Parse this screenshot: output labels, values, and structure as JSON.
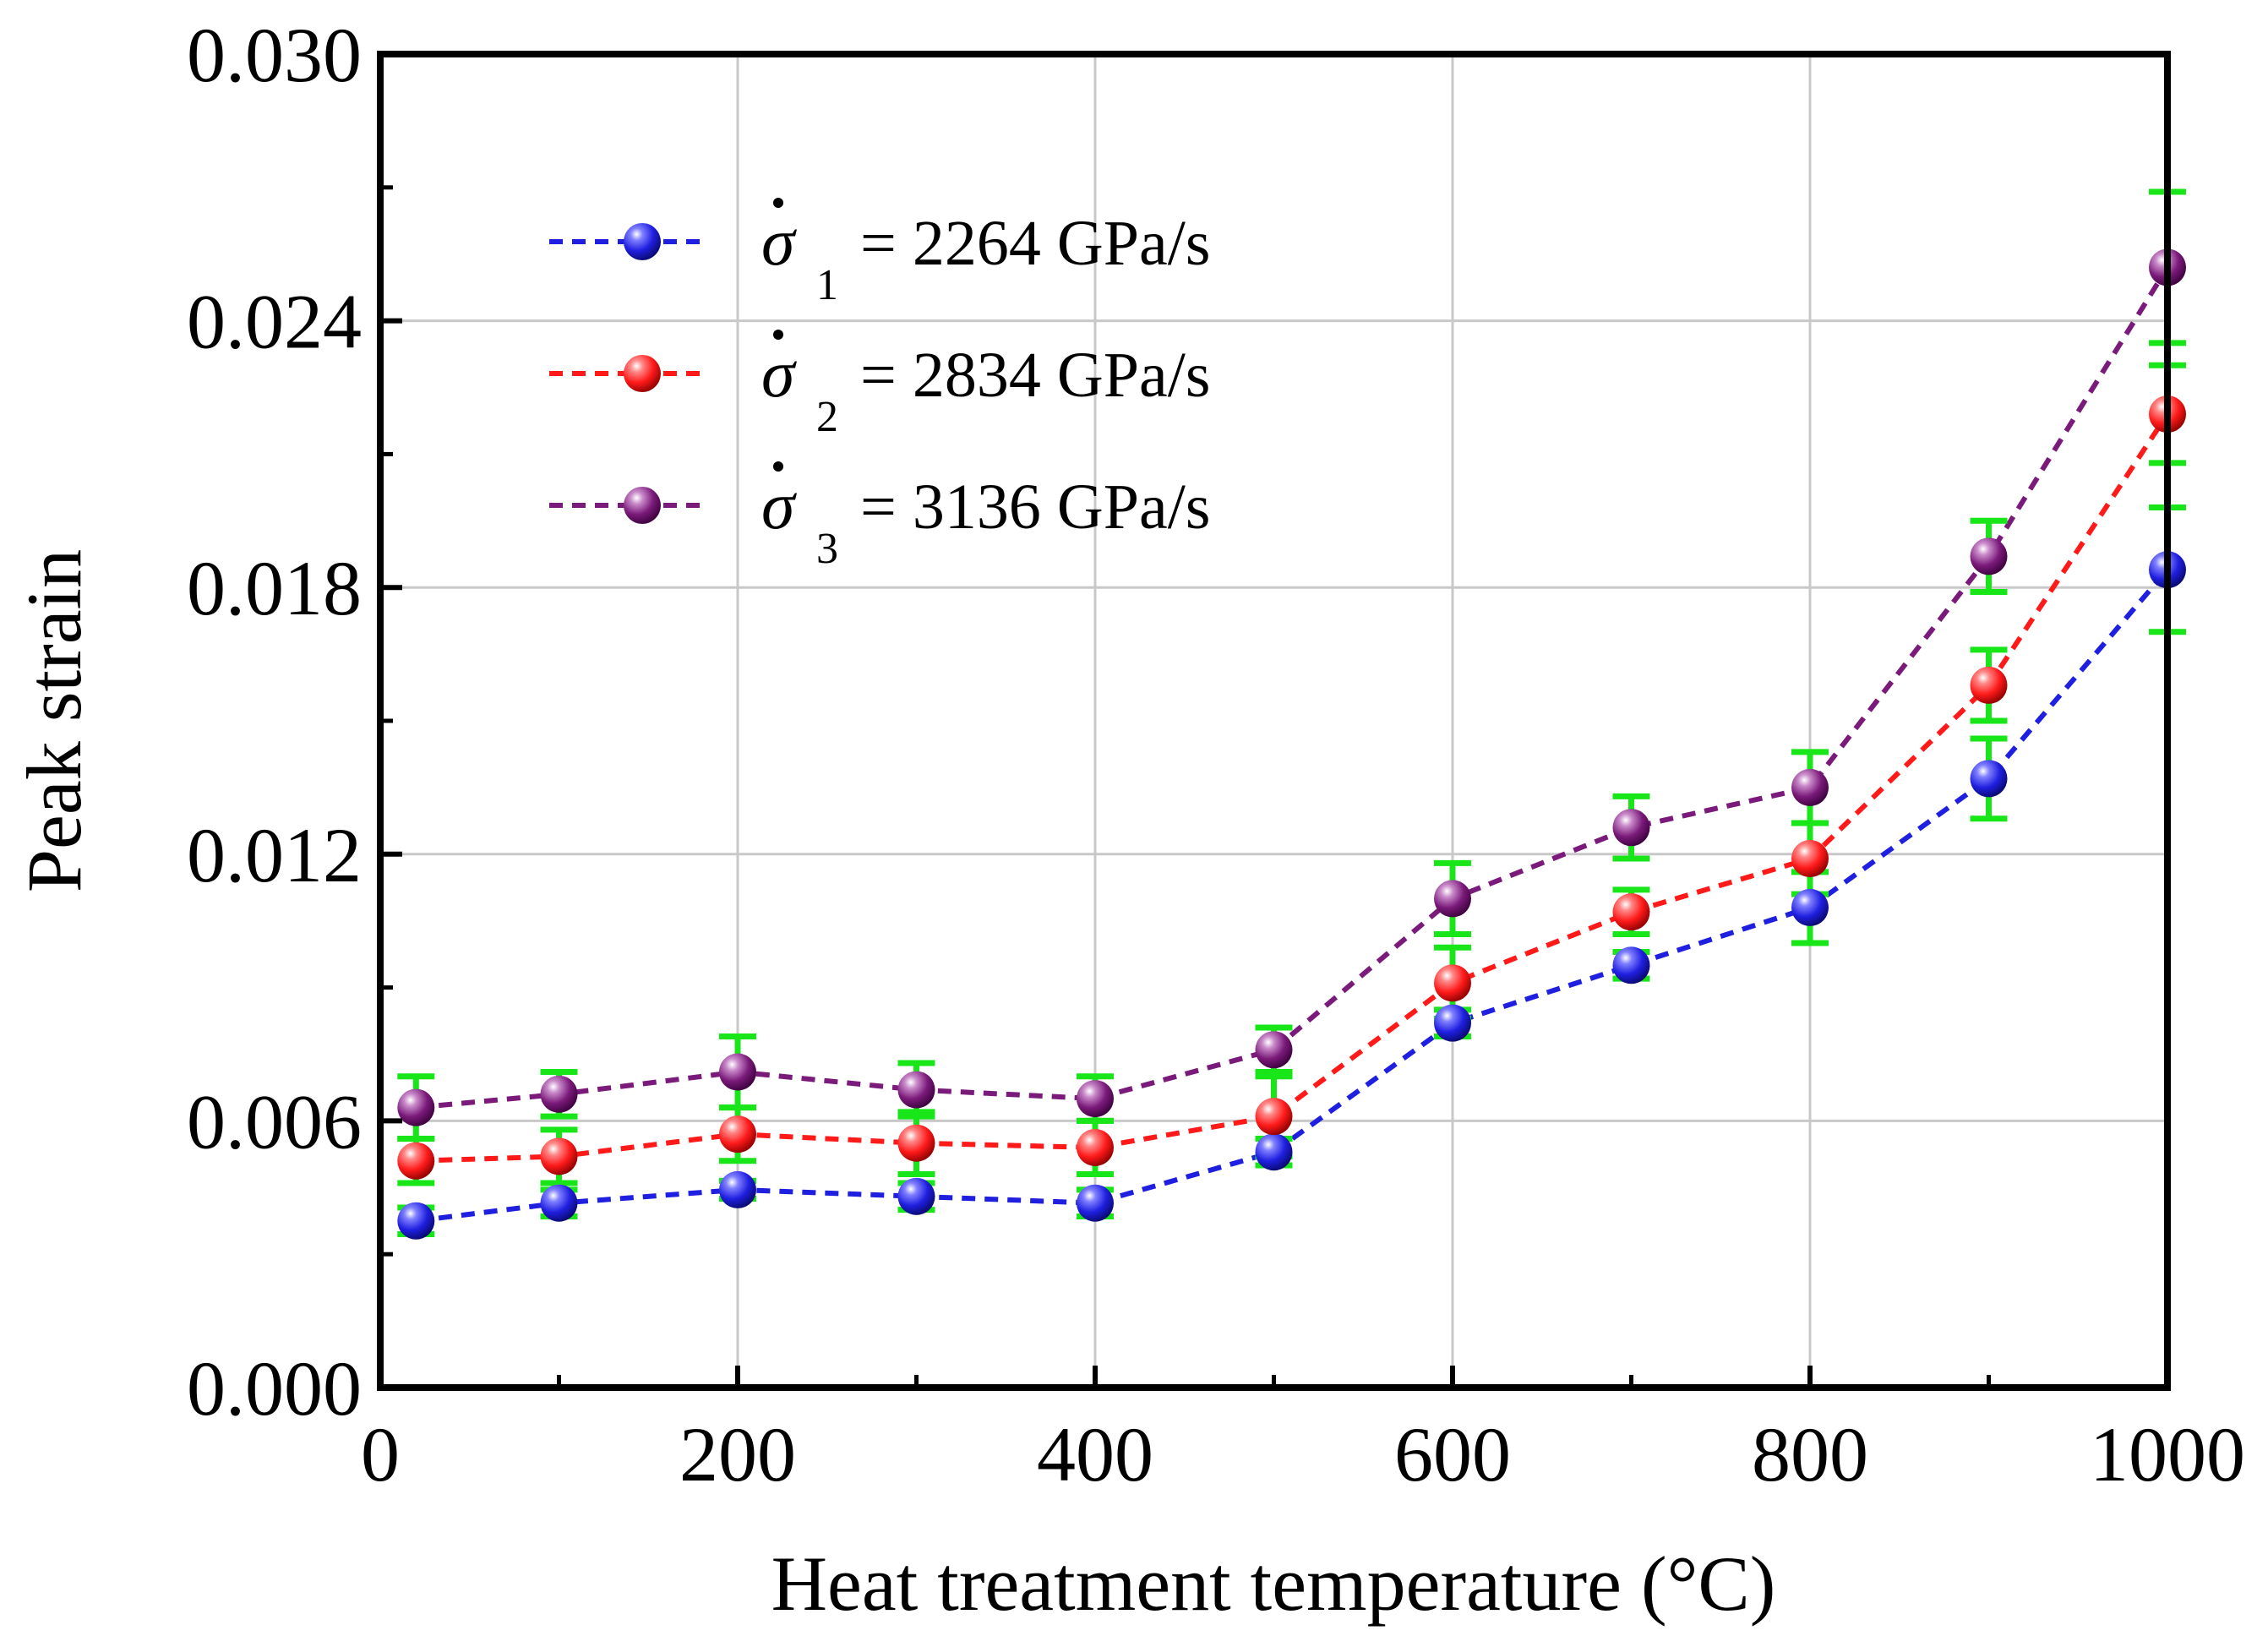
{
  "chart_data": {
    "type": "line",
    "title": "",
    "xlabel": "Heat treatment temperature (°C)",
    "ylabel": "Peak strain",
    "xlim": [
      0,
      1000
    ],
    "ylim": [
      0,
      0.03
    ],
    "xticks": [
      "0",
      "200",
      "400",
      "600",
      "800",
      "1000"
    ],
    "yticks": [
      "0.000",
      "0.006",
      "0.012",
      "0.018",
      "0.024",
      "0.030"
    ],
    "grid": true,
    "legend_position": "top-left",
    "x": [
      20,
      100,
      200,
      300,
      400,
      500,
      600,
      700,
      800,
      900,
      1000
    ],
    "series": [
      {
        "name": "σ̇1 = 2264 GPa/s",
        "legend_symbol": "σ",
        "legend_sub": "1",
        "legend_text": "= 2264 GPa/s",
        "color": "#1f1fe0",
        "values": [
          0.00375,
          0.00415,
          0.00445,
          0.0043,
          0.00415,
          0.0053,
          0.0082,
          0.0095,
          0.0108,
          0.0137,
          0.0184
        ],
        "errors": [
          0.0003,
          0.0003,
          0.0002,
          0.0003,
          0.0003,
          0.0003,
          0.0003,
          0.0003,
          0.0008,
          0.0009,
          0.0014
        ]
      },
      {
        "name": "σ̇2 = 2834 GPa/s",
        "legend_symbol": "σ",
        "legend_sub": "2",
        "legend_text": "= 2834 GPa/s",
        "color": "#ff1a1a",
        "values": [
          0.0051,
          0.0052,
          0.0057,
          0.0055,
          0.0054,
          0.0061,
          0.0091,
          0.0107,
          0.0119,
          0.0158,
          0.0219
        ],
        "errors": [
          0.0005,
          0.0006,
          0.0006,
          0.0007,
          0.0006,
          0.0009,
          0.0008,
          0.0005,
          0.0008,
          0.0008,
          0.0011
        ]
      },
      {
        "name": "σ̇3 = 3136 GPa/s",
        "legend_symbol": "σ",
        "legend_sub": "3",
        "legend_text": "= 3136 GPa/s",
        "color": "#7a1a7a",
        "values": [
          0.0063,
          0.0066,
          0.0071,
          0.0067,
          0.0065,
          0.0076,
          0.011,
          0.0126,
          0.0135,
          0.0187,
          0.0252
        ],
        "errors": [
          0.0007,
          0.0005,
          0.0008,
          0.0006,
          0.0005,
          0.0005,
          0.0008,
          0.0007,
          0.0008,
          0.0008,
          0.0017
        ]
      }
    ],
    "error_bar_color": "#19e619"
  }
}
